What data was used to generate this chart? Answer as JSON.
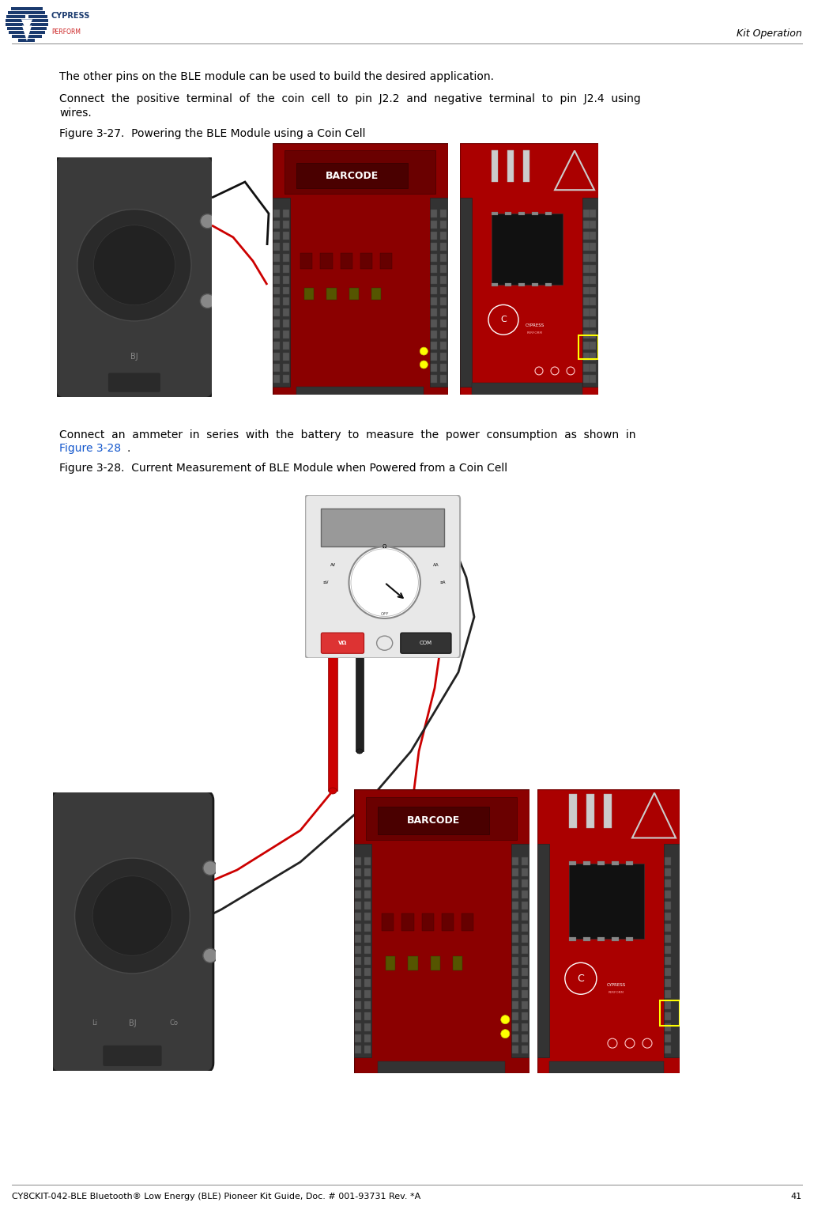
{
  "page_width": 10.3,
  "page_height": 15.3,
  "dpi": 100,
  "background_color": "#ffffff",
  "text_color": "#000000",
  "link_color": "#1155cc",
  "separator_color": "#aaaaaa",
  "header_right_text": "Kit Operation",
  "footer_left_text": "CY8CKIT-042-BLE Bluetooth® Low Energy (BLE) Pioneer Kit Guide, Doc. # 001-93731 Rev. *A",
  "footer_right_text": "41",
  "para1": "The other pins on the BLE module can be used to build the desired application.",
  "para2_line1": "Connect  the  positive  terminal  of  the  coin  cell  to  pin  J2.2  and  negative  terminal  to  pin  J2.4  using",
  "para2_line2": "wires.",
  "fig1_caption": "Figure 3-27.  Powering the BLE Module using a Coin Cell",
  "para3_line1": "Connect  an  ammeter  in  series  with  the  battery  to  measure  the  power  consumption  as  shown  in",
  "para3_link": "Figure 3-28",
  "para3_end": ".",
  "fig2_caption": "Figure 3-28.  Current Measurement of BLE Module when Powered from a Coin Cell",
  "body_font": 10,
  "caption_font": 10,
  "header_font": 9,
  "footer_font": 8
}
